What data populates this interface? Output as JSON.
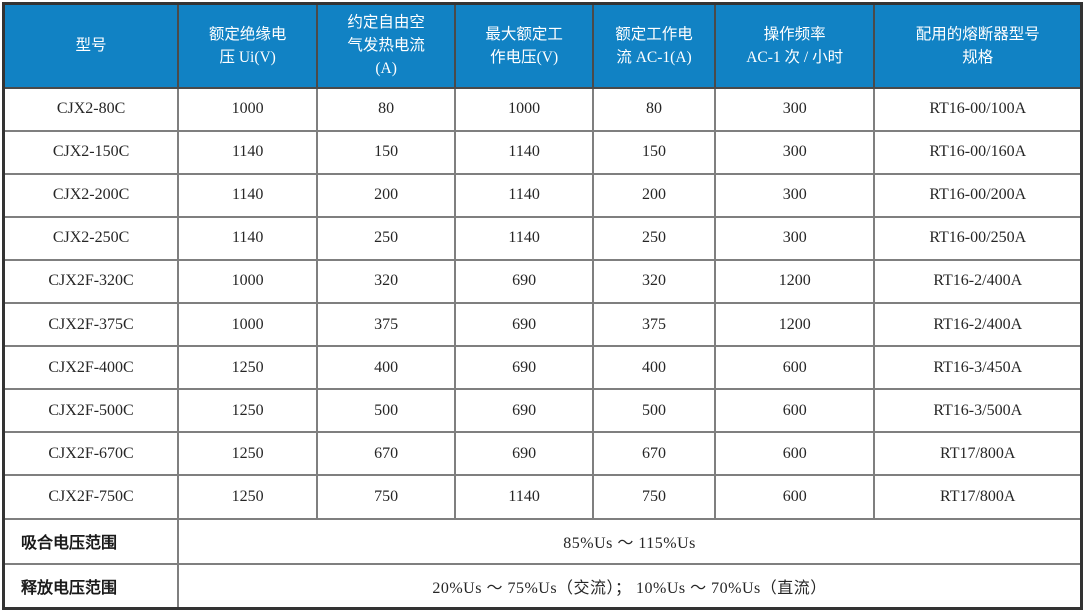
{
  "table": {
    "columns": [
      {
        "label": "型号"
      },
      {
        "label": "额定绝缘电\n压 Ui(V)"
      },
      {
        "label": "约定自由空\n气发热电流\n(A)"
      },
      {
        "label": "最大额定工\n作电压(V)"
      },
      {
        "label": "额定工作电\n流 AC-1(A)"
      },
      {
        "label": "操作频率\nAC-1 次 / 小时"
      },
      {
        "label": "配用的熔断器型号\n规格"
      }
    ],
    "rows": [
      {
        "cells": [
          "CJX2-80C",
          "1000",
          "80",
          "1000",
          "80",
          "300",
          "RT16-00/100A"
        ]
      },
      {
        "cells": [
          "CJX2-150C",
          "1140",
          "150",
          "1140",
          "150",
          "300",
          "RT16-00/160A"
        ]
      },
      {
        "cells": [
          "CJX2-200C",
          "1140",
          "200",
          "1140",
          "200",
          "300",
          "RT16-00/200A"
        ]
      },
      {
        "cells": [
          "CJX2-250C",
          "1140",
          "250",
          "1140",
          "250",
          "300",
          "RT16-00/250A"
        ]
      },
      {
        "cells": [
          "CJX2F-320C",
          "1000",
          "320",
          "690",
          "320",
          "1200",
          "RT16-2/400A"
        ]
      },
      {
        "cells": [
          "CJX2F-375C",
          "1000",
          "375",
          "690",
          "375",
          "1200",
          "RT16-2/400A"
        ]
      },
      {
        "cells": [
          "CJX2F-400C",
          "1250",
          "400",
          "690",
          "400",
          "600",
          "RT16-3/450A"
        ]
      },
      {
        "cells": [
          "CJX2F-500C",
          "1250",
          "500",
          "690",
          "500",
          "600",
          "RT16-3/500A"
        ]
      },
      {
        "cells": [
          "CJX2F-670C",
          "1250",
          "670",
          "690",
          "670",
          "600",
          "RT17/800A"
        ]
      },
      {
        "cells": [
          "CJX2F-750C",
          "1250",
          "750",
          "1140",
          "750",
          "600",
          "RT17/800A"
        ]
      }
    ],
    "footer_rows": [
      {
        "label": "吸合电压范围",
        "value": "85%Us ～ 115%Us"
      },
      {
        "label": "释放电压范围",
        "value": "20%Us ～ 75%Us（交流）； 10%Us ～ 70%Us（直流）"
      }
    ],
    "colors": {
      "header_bg": "#1182c4",
      "header_text": "#ffffff",
      "border_inner": "#7f7f7f",
      "border_outer": "#333333",
      "body_text": "#262626"
    }
  }
}
